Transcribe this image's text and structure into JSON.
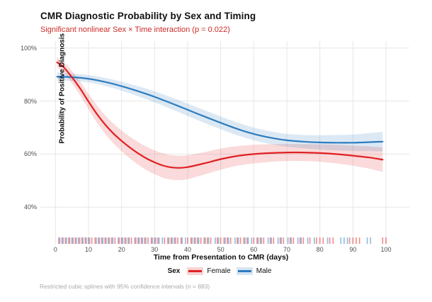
{
  "chart_data": {
    "type": "line",
    "title": "CMR Diagnostic Probability by Sex and Timing",
    "subtitle": "Significant nonlinear Sex × Time interaction (p = 0.022)",
    "xlabel": "Time from Presentation to CMR (days)",
    "ylabel": "Probability of Positive Diagnosis",
    "caption": "Restricted cubic splines with 95% confidence intervals (n = 883)",
    "legend_title": "Sex",
    "legend_position": "bottom",
    "grid": "major-only",
    "xlim": [
      0,
      100
    ],
    "ylim_pct": [
      33,
      102
    ],
    "x_tick_values": [
      0,
      10,
      20,
      30,
      40,
      50,
      60,
      70,
      80,
      90,
      100
    ],
    "x_tick_labels": [
      "0",
      "10",
      "20",
      "30",
      "40",
      "50",
      "60",
      "70",
      "80",
      "90",
      "100"
    ],
    "y_tick_values": [
      100,
      80,
      60,
      40
    ],
    "y_tick_labels": [
      "100%",
      "80%",
      "60%",
      "40%"
    ],
    "colors": {
      "female": "#e02124",
      "male": "#2e7cbf",
      "subtitle": "#cc2b27",
      "gridline": "#e7e7e7",
      "tick_text": "#4f4f4f",
      "caption_text": "#a9a9a9",
      "title_text": "#111111"
    },
    "series": [
      {
        "name": "Female",
        "color": "#e02124",
        "x": [
          0.5,
          2.5,
          5,
          7.5,
          10,
          12.5,
          15,
          17.5,
          20,
          22.5,
          25,
          27.5,
          30,
          32.5,
          35,
          37.5,
          40,
          45,
          50,
          55,
          60,
          65,
          70,
          75,
          80,
          85,
          90,
          95,
          99
        ],
        "y_pct": [
          94.6,
          92.7,
          89.0,
          84.7,
          79.8,
          75.2,
          71.2,
          67.8,
          65.0,
          62.5,
          60.3,
          58.4,
          56.9,
          55.7,
          55.0,
          54.8,
          55.1,
          56.5,
          58.1,
          59.3,
          60.0,
          60.4,
          60.6,
          60.6,
          60.4,
          60.0,
          59.4,
          58.7,
          57.9
        ],
        "ci_half_pct": [
          1.8,
          2.0,
          2.3,
          2.6,
          2.9,
          3.2,
          3.5,
          3.7,
          3.9,
          4.1,
          4.3,
          4.4,
          4.5,
          4.6,
          4.6,
          4.6,
          4.5,
          4.2,
          4.0,
          3.7,
          3.5,
          3.3,
          3.2,
          3.2,
          3.3,
          3.5,
          3.8,
          4.2,
          4.6
        ]
      },
      {
        "name": "Male",
        "color": "#2e7cbf",
        "x": [
          0.5,
          5,
          10,
          15,
          20,
          25,
          30,
          35,
          40,
          45,
          50,
          55,
          60,
          65,
          70,
          75,
          80,
          85,
          90,
          95,
          99
        ],
        "y_pct": [
          89.2,
          89.0,
          88.4,
          87.2,
          85.6,
          83.7,
          81.6,
          79.2,
          76.7,
          74.2,
          71.8,
          69.5,
          67.6,
          66.2,
          65.2,
          64.7,
          64.4,
          64.3,
          64.3,
          64.5,
          64.7
        ],
        "ci_half_pct": [
          1.6,
          1.4,
          1.4,
          1.5,
          1.7,
          1.9,
          2.1,
          2.2,
          2.3,
          2.4,
          2.4,
          2.4,
          2.4,
          2.4,
          2.4,
          2.5,
          2.7,
          2.9,
          3.1,
          3.4,
          3.7
        ]
      }
    ],
    "rug": {
      "female_days": [
        1,
        2,
        3,
        4,
        5,
        6,
        7,
        8,
        9,
        10,
        11,
        12,
        13,
        14,
        15,
        16,
        17,
        18,
        19,
        20,
        21,
        22,
        23,
        24,
        25,
        26,
        27,
        28,
        29,
        30,
        31,
        33,
        34,
        35,
        36,
        37,
        38,
        40,
        41,
        42,
        43,
        44,
        45,
        46,
        47,
        49,
        50,
        51,
        52,
        53,
        55,
        56,
        57,
        58,
        60,
        61,
        62,
        63,
        65,
        66,
        68,
        69,
        71,
        72,
        74,
        75,
        77,
        79,
        80,
        81,
        83,
        84,
        89,
        90,
        91,
        92,
        99,
        100
      ],
      "male_days": [
        1,
        2,
        3,
        4,
        5,
        6,
        7,
        8,
        9,
        10,
        12,
        13,
        14,
        15,
        16,
        17,
        19,
        20,
        21,
        22,
        24,
        25,
        26,
        27,
        29,
        30,
        31,
        32,
        34,
        35,
        36,
        38,
        39,
        41,
        42,
        43,
        45,
        46,
        48,
        49,
        51,
        52,
        54,
        55,
        57,
        58,
        59,
        61,
        62,
        64,
        65,
        67,
        68,
        70,
        71,
        73,
        74,
        76,
        78,
        82,
        86,
        87,
        88,
        94,
        95
      ]
    }
  }
}
